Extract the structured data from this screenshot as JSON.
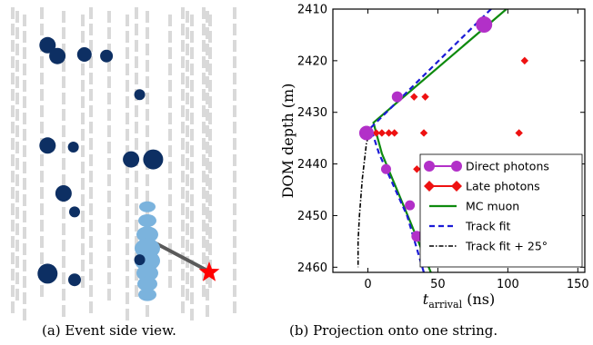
{
  "captions": {
    "a": "(a) Event side view.",
    "b": "(b) Projection onto one string."
  },
  "colors": {
    "dom_dark": "#0d2f63",
    "dom_light": "#7bb3dd",
    "direct": "#b230c8",
    "late": "#ee1111",
    "mc_muon": "#0e8a0e",
    "track_fit": "#1b1bd6",
    "track_fit_25": "#000000",
    "track_line": "#5a5a5a",
    "string_gray": "#d9d9d9",
    "vertex_star": "#ff0000"
  },
  "chart_data": [
    {
      "type": "scatter",
      "panel": "a",
      "dom_hits_dark": [
        {
          "x": 0.09,
          "y": 0.12,
          "size": 9
        },
        {
          "x": 0.13,
          "y": 0.155,
          "size": 9
        },
        {
          "x": 0.24,
          "y": 0.15,
          "size": 8
        },
        {
          "x": 0.09,
          "y": 0.445,
          "size": 9
        },
        {
          "x": 0.195,
          "y": 0.45,
          "size": 6
        },
        {
          "x": 0.43,
          "y": 0.49,
          "size": 9
        },
        {
          "x": 0.155,
          "y": 0.6,
          "size": 9
        },
        {
          "x": 0.2,
          "y": 0.66,
          "size": 6
        },
        {
          "x": 0.33,
          "y": 0.155,
          "size": 7
        },
        {
          "x": 0.465,
          "y": 0.28,
          "size": 6
        },
        {
          "x": 0.52,
          "y": 0.49,
          "size": 11
        },
        {
          "x": 0.09,
          "y": 0.86,
          "size": 11
        },
        {
          "x": 0.2,
          "y": 0.88,
          "size": 7
        },
        {
          "x": 0.465,
          "y": 0.815,
          "size": 6
        }
      ],
      "dom_hits_light": [
        0.655,
        0.7,
        0.745,
        0.79,
        0.83,
        0.87,
        0.905,
        0.94
      ],
      "vertex": "star"
    },
    {
      "type": "scatter",
      "panel": "b",
      "xlabel": "t_arrival (ns)",
      "ylabel": "DOM depth (m)",
      "xlim": [
        -25,
        155
      ],
      "ylim": [
        2461,
        2410
      ],
      "xticks": [
        0,
        50,
        100,
        150
      ],
      "yticks": [
        2410,
        2420,
        2430,
        2440,
        2450,
        2460
      ],
      "legend_position": "lower-right",
      "series": [
        {
          "name": "Direct photons",
          "marker": "circle",
          "points": [
            [
              83,
              2413
            ],
            [
              21,
              2427
            ],
            [
              -1,
              2434
            ],
            [
              13,
              2441
            ],
            [
              30,
              2448
            ],
            [
              35,
              2454
            ]
          ]
        },
        {
          "name": "Late photons",
          "marker": "diamond",
          "points": [
            [
              112,
              2420
            ],
            [
              33,
              2427
            ],
            [
              41,
              2427
            ],
            [
              6,
              2434
            ],
            [
              10,
              2434
            ],
            [
              15,
              2434
            ],
            [
              19,
              2434
            ],
            [
              40,
              2434
            ],
            [
              108,
              2434
            ],
            [
              35,
              2441
            ]
          ]
        },
        {
          "name": "MC muon",
          "style": "solid",
          "points": [
            [
              99,
              2410
            ],
            [
              4,
              2432
            ],
            [
              10,
              2438
            ],
            [
              30,
              2451
            ],
            [
              45,
              2461
            ]
          ]
        },
        {
          "name": "Track fit",
          "style": "dashed",
          "points": [
            [
              88,
              2410
            ],
            [
              2,
              2433
            ],
            [
              8,
              2438
            ],
            [
              28,
              2450
            ],
            [
              40,
              2461
            ]
          ]
        },
        {
          "name": "Track fit + 25°",
          "style": "dashdot",
          "points": [
            [
              2,
              2433
            ],
            [
              -1,
              2436
            ],
            [
              -4,
              2443
            ],
            [
              -6,
              2450
            ],
            [
              -7,
              2455
            ],
            [
              -7,
              2460
            ]
          ]
        }
      ]
    }
  ]
}
